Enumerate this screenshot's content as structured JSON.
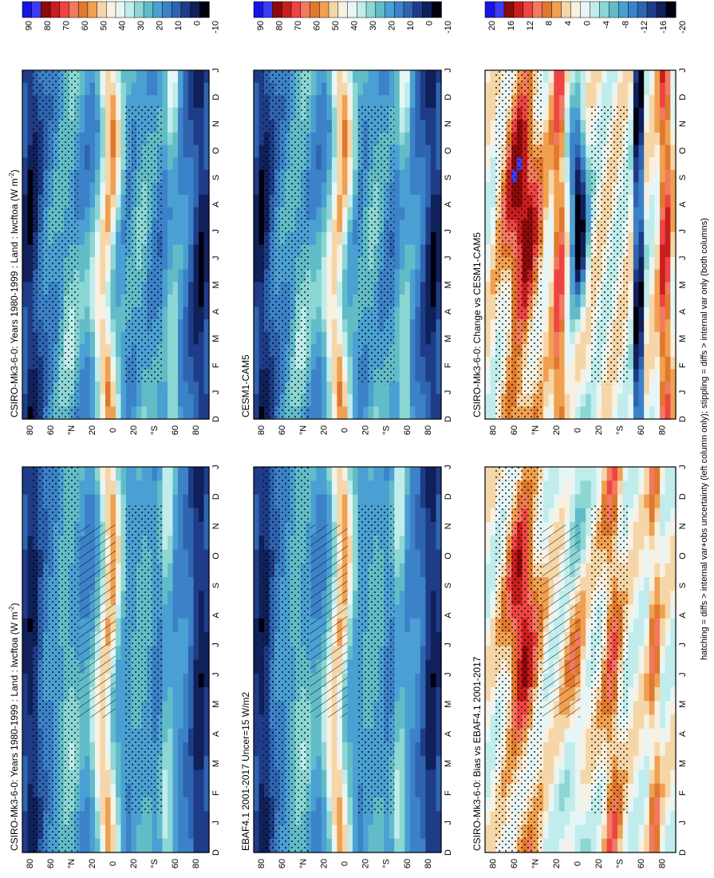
{
  "footer_note": "hatching = diffs > internal var+obs uncertainty (left column only); stippling = diffs > internal var only (both columns)",
  "chart_data": [
    {
      "type": "heatmap",
      "title": "CSIRO-Mk3-6-0: Years 1980-1999 : Land : lwcftoa (W m",
      "title_sup": "-2",
      "title_close": ")",
      "months": [
        "D",
        "J",
        "F",
        "M",
        "A",
        "M",
        "J",
        "J",
        "A",
        "S",
        "O",
        "N",
        "D",
        "J"
      ],
      "lat_ticks": [
        "80",
        "60",
        "°N",
        "20",
        "0",
        "20",
        "°S",
        "60",
        "80"
      ],
      "colorbar": {
        "labels": [
          "90",
          "80",
          "70",
          "60",
          "50",
          "40",
          "30",
          "20",
          "10",
          "0",
          "-10"
        ],
        "colors": [
          "#1414e6",
          "#3c3cf2",
          "#8c0a0a",
          "#c81e1e",
          "#ee4444",
          "#f27a60",
          "#e0782e",
          "#f0a050",
          "#f5d6a8",
          "#f8f0e0",
          "#e6f6f6",
          "#c0ecec",
          "#8cd6d4",
          "#62bcc8",
          "#4aa0d2",
          "#3c82c8",
          "#2e64b0",
          "#1e3c88",
          "#10205a",
          "#000010"
        ]
      },
      "hatching": true,
      "stippling": true,
      "field": "clim"
    },
    {
      "type": "heatmap",
      "title": "CSIRO-Mk3-6-0: Years 1980-1999 : Land : lwcftoa (W m",
      "title_sup": "-2",
      "title_close": ")",
      "months": [
        "D",
        "J",
        "F",
        "M",
        "A",
        "M",
        "J",
        "J",
        "A",
        "S",
        "O",
        "N",
        "D",
        "J"
      ],
      "lat_ticks": [
        "80",
        "60",
        "°N",
        "20",
        "0",
        "20",
        "°S",
        "60",
        "80"
      ],
      "colorbar": {
        "labels": [
          "90",
          "80",
          "70",
          "60",
          "50",
          "40",
          "30",
          "20",
          "10",
          "0",
          "-10"
        ],
        "colors": [
          "#1414e6",
          "#3c3cf2",
          "#8c0a0a",
          "#c81e1e",
          "#ee4444",
          "#f27a60",
          "#e0782e",
          "#f0a050",
          "#f5d6a8",
          "#f8f0e0",
          "#e6f6f6",
          "#c0ecec",
          "#8cd6d4",
          "#62bcc8",
          "#4aa0d2",
          "#3c82c8",
          "#2e64b0",
          "#1e3c88",
          "#10205a",
          "#000010"
        ]
      },
      "hatching": false,
      "stippling": true,
      "field": "clim"
    },
    {
      "type": "heatmap",
      "title": "EBAF4.1 2001-2017 Uncer=15 W/m2",
      "months": [
        "D",
        "J",
        "F",
        "M",
        "A",
        "M",
        "J",
        "J",
        "A",
        "S",
        "O",
        "N",
        "D",
        "J"
      ],
      "lat_ticks": [
        "80",
        "60",
        "°N",
        "20",
        "0",
        "20",
        "°S",
        "60",
        "80"
      ],
      "colorbar": {
        "labels": [
          "90",
          "80",
          "70",
          "60",
          "50",
          "40",
          "30",
          "20",
          "10",
          "0",
          "-10"
        ],
        "colors": [
          "#1414e6",
          "#3c3cf2",
          "#8c0a0a",
          "#c81e1e",
          "#ee4444",
          "#f27a60",
          "#e0782e",
          "#f0a050",
          "#f5d6a8",
          "#f8f0e0",
          "#e6f6f6",
          "#c0ecec",
          "#8cd6d4",
          "#62bcc8",
          "#4aa0d2",
          "#3c82c8",
          "#2e64b0",
          "#1e3c88",
          "#10205a",
          "#000010"
        ]
      },
      "hatching": true,
      "stippling": true,
      "field": "clim"
    },
    {
      "type": "heatmap",
      "title": "CESM1-CAM5",
      "months": [
        "D",
        "J",
        "F",
        "M",
        "A",
        "M",
        "J",
        "J",
        "A",
        "S",
        "O",
        "N",
        "D",
        "J"
      ],
      "lat_ticks": [
        "80",
        "60",
        "°N",
        "20",
        "0",
        "20",
        "°S",
        "60",
        "80"
      ],
      "colorbar": {
        "labels": [
          "90",
          "80",
          "70",
          "60",
          "50",
          "40",
          "30",
          "20",
          "10",
          "0",
          "-10"
        ],
        "colors": [
          "#1414e6",
          "#3c3cf2",
          "#8c0a0a",
          "#c81e1e",
          "#ee4444",
          "#f27a60",
          "#e0782e",
          "#f0a050",
          "#f5d6a8",
          "#f8f0e0",
          "#e6f6f6",
          "#c0ecec",
          "#8cd6d4",
          "#62bcc8",
          "#4aa0d2",
          "#3c82c8",
          "#2e64b0",
          "#1e3c88",
          "#10205a",
          "#000010"
        ]
      },
      "hatching": false,
      "stippling": true,
      "field": "clim"
    },
    {
      "type": "heatmap",
      "title": "CSIRO-Mk3-6-0: Bias vs EBAF4.1 2001-2017",
      "months": [
        "D",
        "J",
        "F",
        "M",
        "A",
        "M",
        "J",
        "J",
        "A",
        "S",
        "O",
        "N",
        "D",
        "J"
      ],
      "lat_ticks": [
        "80",
        "60",
        "°N",
        "20",
        "0",
        "20",
        "°S",
        "60",
        "80"
      ],
      "colorbar": {
        "labels": [
          "20",
          "16",
          "12",
          "8",
          "4",
          "0",
          "-4",
          "-8",
          "-12",
          "-16",
          "-20"
        ],
        "colors": [
          "#1414e6",
          "#3c3cf2",
          "#8c0a0a",
          "#c81e1e",
          "#ee4444",
          "#f27a60",
          "#e0782e",
          "#f0a050",
          "#f5d6a8",
          "#f8f0e0",
          "#e6f6f6",
          "#c0ecec",
          "#8cd6d4",
          "#62bcc8",
          "#4aa0d2",
          "#3c82c8",
          "#2e64b0",
          "#1e3c88",
          "#10205a",
          "#000010"
        ]
      },
      "hatching": true,
      "stippling": true,
      "field": "bias"
    },
    {
      "type": "heatmap",
      "title": "CSIRO-Mk3-6-0: Change vs CESM1-CAM5",
      "months": [
        "D",
        "J",
        "F",
        "M",
        "A",
        "M",
        "J",
        "J",
        "A",
        "S",
        "O",
        "N",
        "D",
        "J"
      ],
      "lat_ticks": [
        "80",
        "60",
        "°N",
        "20",
        "0",
        "20",
        "°S",
        "60",
        "80"
      ],
      "colorbar": {
        "labels": [
          "20",
          "16",
          "12",
          "8",
          "4",
          "0",
          "-4",
          "-8",
          "-12",
          "-16",
          "-20"
        ],
        "colors": [
          "#1414e6",
          "#3c3cf2",
          "#8c0a0a",
          "#c81e1e",
          "#ee4444",
          "#f27a60",
          "#e0782e",
          "#f0a050",
          "#f5d6a8",
          "#f8f0e0",
          "#e6f6f6",
          "#c0ecec",
          "#8cd6d4",
          "#62bcc8",
          "#4aa0d2",
          "#3c82c8",
          "#2e64b0",
          "#1e3c88",
          "#10205a",
          "#000010"
        ]
      },
      "hatching": false,
      "stippling": true,
      "field": "change"
    }
  ]
}
